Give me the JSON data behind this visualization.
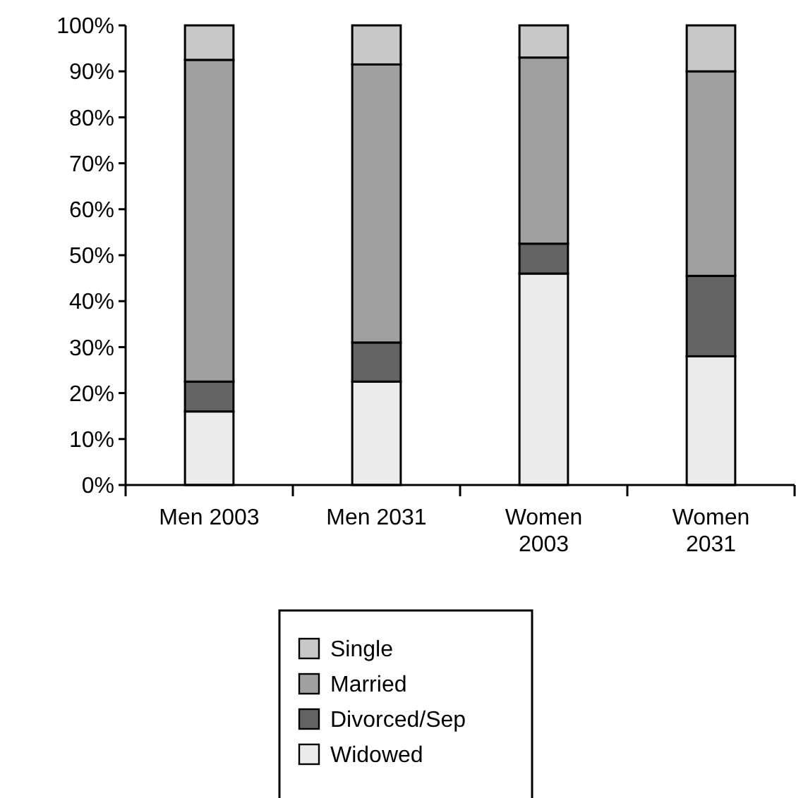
{
  "chart_data": {
    "type": "bar",
    "stacked": true,
    "categories": [
      "Men 2003",
      "Men 2031",
      "Women 2003",
      "Women 2031"
    ],
    "series": [
      {
        "name": "Widowed",
        "color": "#ebebeb",
        "values": [
          16,
          22.5,
          46,
          28
        ]
      },
      {
        "name": "Divorced/Sep",
        "color": "#646464",
        "values": [
          6.5,
          8.5,
          6.5,
          17.5
        ]
      },
      {
        "name": "Married",
        "color": "#a0a0a0",
        "values": [
          70,
          60.5,
          40.5,
          44.5
        ]
      },
      {
        "name": "Single",
        "color": "#c8c8c8",
        "values": [
          7.5,
          8.5,
          7,
          10
        ]
      }
    ],
    "ylim": [
      0,
      100
    ],
    "yticks": [
      {
        "value": 0,
        "label": "0%"
      },
      {
        "value": 10,
        "label": "10%"
      },
      {
        "value": 20,
        "label": "20%"
      },
      {
        "value": 30,
        "label": "30%"
      },
      {
        "value": 40,
        "label": "40%"
      },
      {
        "value": 50,
        "label": "50%"
      },
      {
        "value": 60,
        "label": "60%"
      },
      {
        "value": 70,
        "label": "70%"
      },
      {
        "value": 80,
        "label": "80%"
      },
      {
        "value": 90,
        "label": "90%"
      },
      {
        "value": 100,
        "label": "100%"
      }
    ],
    "grid": false,
    "legend": "bottom"
  }
}
